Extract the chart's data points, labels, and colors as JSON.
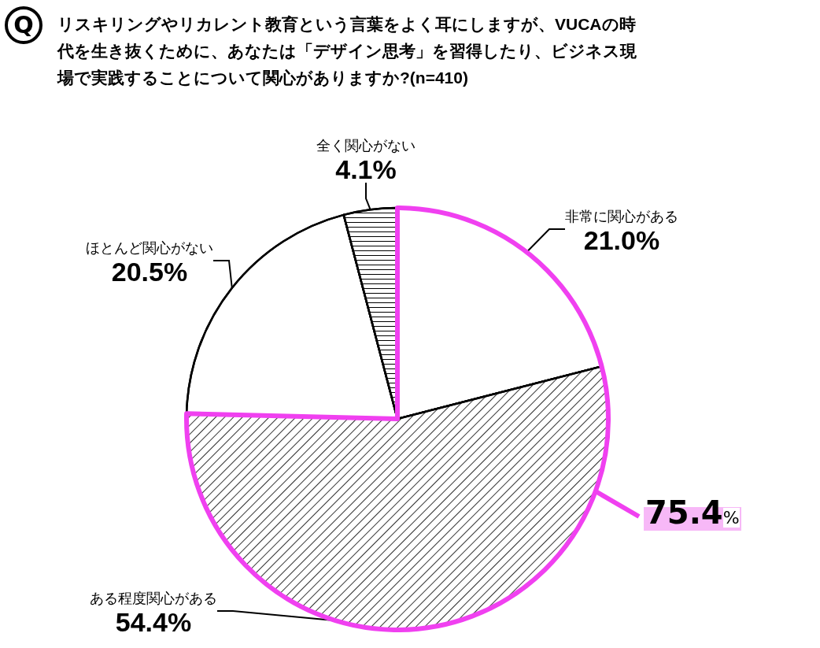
{
  "chart_data": {
    "type": "pie",
    "title": "リスキリングやリカレント教育という言葉をよく耳にしますが、VUCAの時代を生き抜くために、あなたは「デザイン思考」を習得したり、ビジネス現場で実践することについて関心がありますか?(n=410)",
    "categories": [
      "非常に関心がある",
      "ある程度関心がある",
      "ほとんど関心がない",
      "全く関心がない"
    ],
    "values": [
      21.0,
      54.4,
      20.5,
      4.1
    ],
    "value_labels": [
      "21.0%",
      "54.4%",
      "20.5%",
      "4.1%"
    ],
    "colors": [
      "#ffffff",
      "#ffffff",
      "#ffffff",
      "#ffffff"
    ],
    "annotations": [
      "Q",
      "75.4%"
    ],
    "legend": false
  }
}
